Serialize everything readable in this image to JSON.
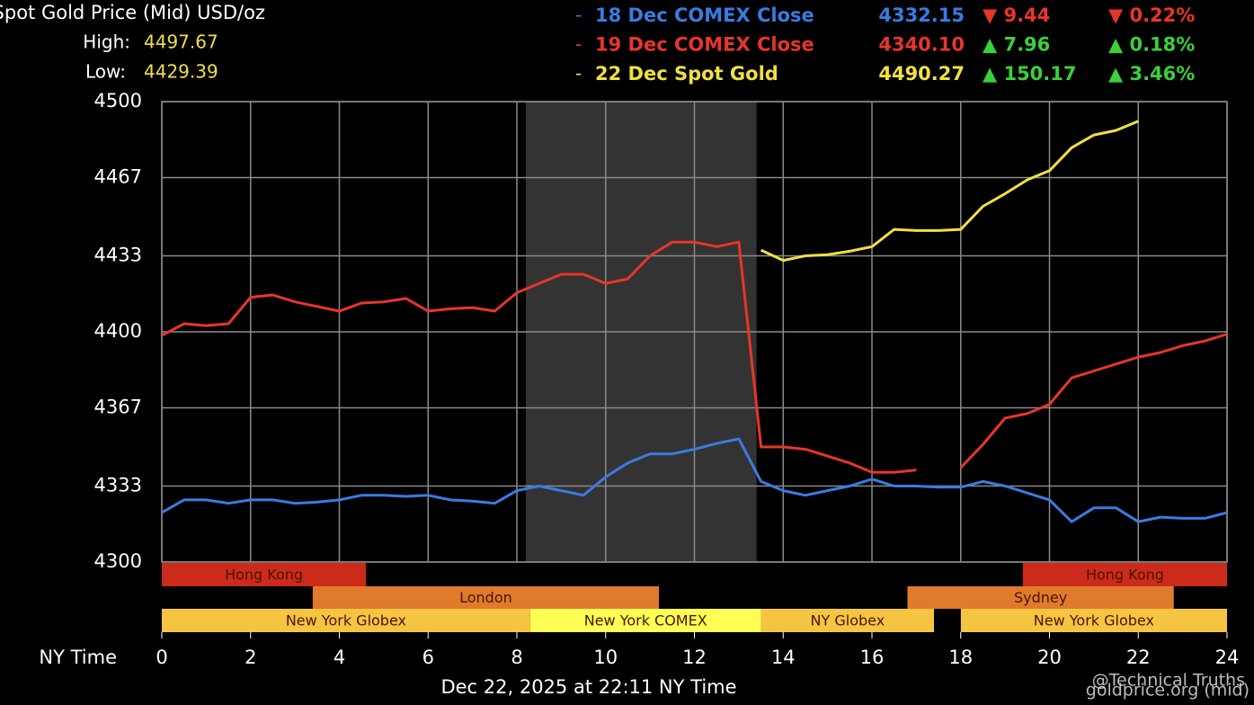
{
  "chart_data": {
    "type": "line",
    "title": "Spot Gold Price (Mid) USD/oz",
    "high_label": "High:",
    "high": 4497.67,
    "low_label": "Low:",
    "low": 4429.39,
    "x_label": "NY Time",
    "footer": "Dec 22, 2025 at 22:11 NY Time",
    "source": "goldprice.org (mid)",
    "watermark": "@Technical Truths",
    "xlim": [
      0,
      24
    ],
    "xticks": [
      0,
      2,
      4,
      6,
      8,
      10,
      12,
      14,
      16,
      18,
      20,
      22,
      24
    ],
    "ylim": [
      4300,
      4500
    ],
    "yticks": [
      4300,
      4333,
      4367,
      4400,
      4433,
      4467,
      4500
    ],
    "grid": true,
    "shaded_xrange": [
      8.2,
      13.4
    ],
    "closed_xrange": [
      17.4,
      18
    ],
    "x": [
      0,
      0.5,
      1,
      1.5,
      2,
      2.5,
      3,
      3.5,
      4,
      4.5,
      5,
      5.5,
      6,
      6.5,
      7,
      7.5,
      8,
      8.5,
      9,
      9.5,
      10,
      10.5,
      11,
      11.5,
      12,
      12.5,
      13,
      13.5,
      14,
      14.5,
      15,
      15.5,
      16,
      16.5,
      17,
      17.5,
      18,
      18.5,
      19,
      19.5,
      20,
      20.5,
      21,
      21.5,
      22,
      22.5,
      23,
      23.5,
      24
    ],
    "series": [
      {
        "name": "18 Dec COMEX Close",
        "color": "#3a7be0",
        "last": "4332.15",
        "change": "▼ 9.44",
        "change_pct": "▼ 0.22%",
        "values": [
          4321.5,
          4327,
          4327,
          4325.5,
          4327,
          4327,
          4325.5,
          4326,
          4327,
          4329,
          4329,
          4328.5,
          4329,
          4327,
          4326.5,
          4325.5,
          4331,
          4333,
          4331,
          4329,
          4337,
          4343,
          4347,
          4347,
          4349,
          4351.5,
          4353.5,
          4335,
          4331,
          4329,
          4331,
          4333,
          4336,
          4333,
          4333,
          4332.5,
          4332.5,
          4335,
          4333,
          4330,
          4327,
          4317.5,
          4323.5,
          4323.5,
          4317.5,
          4319.5,
          4319,
          4319,
          4321.5
        ]
      },
      {
        "name": "19 Dec COMEX Close",
        "color": "#e8352a",
        "last": "4340.10",
        "change": "▲ 7.96",
        "change_pct": "▲ 0.18%",
        "values": [
          4398.4,
          4403.5,
          4402.7,
          4403.5,
          4415,
          4416,
          4413,
          4411,
          4409,
          4412.5,
          4413,
          4414.5,
          4409,
          4410,
          4410.5,
          4409,
          4417,
          4421,
          4425,
          4425,
          4421,
          4423,
          4433,
          4439,
          4439,
          4437,
          4439,
          4350,
          4350,
          4349,
          4346,
          4343,
          4339,
          4339,
          4340,
          null,
          4341,
          4351,
          4362.5,
          4364.5,
          4368.5,
          4380,
          4383,
          4386,
          4389,
          4391,
          4394,
          4396,
          4399
        ]
      },
      {
        "name": "22 Dec Spot Gold",
        "color": "#f0e040",
        "last": "4490.27",
        "change": "▲ 150.17",
        "change_pct": "▲ 3.46%",
        "values": [
          null,
          null,
          null,
          null,
          null,
          null,
          null,
          null,
          null,
          null,
          null,
          null,
          null,
          null,
          null,
          null,
          null,
          null,
          null,
          null,
          null,
          null,
          null,
          null,
          null,
          null,
          null,
          4435.5,
          4431,
          4433,
          4433.5,
          4435,
          4437,
          4444.5,
          4444,
          4444,
          4444.5,
          4454.5,
          4460,
          4466,
          4470,
          4480,
          4485.5,
          4487.5,
          4491.5,
          null,
          null,
          null,
          null
        ]
      }
    ],
    "session_rows": [
      [
        {
          "label": "Hong Kong",
          "start": 0,
          "end": 4.6,
          "color": "#cc2a1a"
        },
        {
          "label": "Hong Kong",
          "start": 19.4,
          "end": 24,
          "color": "#cc2a1a"
        }
      ],
      [
        {
          "label": "London",
          "start": 3.4,
          "end": 11.2,
          "color": "#e07a2c"
        },
        {
          "label": "Sydney",
          "start": 16.8,
          "end": 22.8,
          "color": "#e07a2c"
        }
      ],
      [
        {
          "label": "New York Globex",
          "start": 0,
          "end": 8.3,
          "color": "#f5c542"
        },
        {
          "label": "New York COMEX",
          "start": 8.3,
          "end": 13.5,
          "color": "#ffff55"
        },
        {
          "label": "NY Globex",
          "start": 13.5,
          "end": 17.4,
          "color": "#f5c542"
        },
        {
          "label": "New York Globex",
          "start": 18,
          "end": 24,
          "color": "#f5c542"
        }
      ]
    ]
  }
}
